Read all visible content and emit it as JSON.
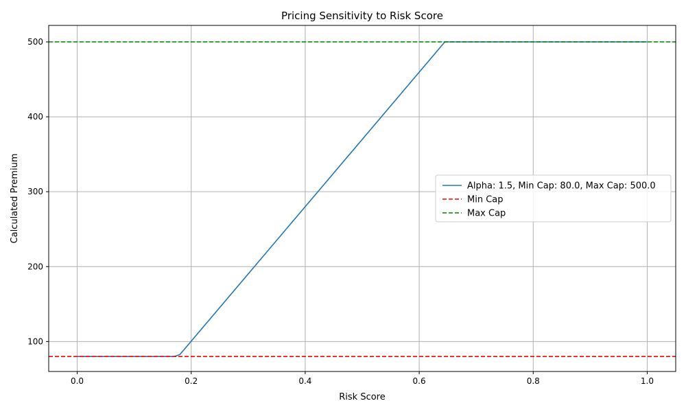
{
  "chart_data": {
    "type": "line",
    "title": "Pricing Sensitivity to Risk Score",
    "xlabel": "Risk Score",
    "ylabel": "Calculated Premium",
    "xlim": [
      -0.05,
      1.05
    ],
    "ylim": [
      60,
      522
    ],
    "xticks": [
      0.0,
      0.2,
      0.4,
      0.6,
      0.8,
      1.0
    ],
    "xtick_labels": [
      "0.0",
      "0.2",
      "0.4",
      "0.6",
      "0.8",
      "1.0"
    ],
    "yticks": [
      100,
      200,
      300,
      400,
      500
    ],
    "ytick_labels": [
      "100",
      "200",
      "300",
      "400",
      "500"
    ],
    "grid": true,
    "legend_position": "center-right",
    "series": [
      {
        "name": "Alpha: 1.5, Min Cap: 80.0, Max Cap: 500.0",
        "color": "#1f77b4",
        "style": "solid",
        "x": [
          0.0,
          0.17,
          0.18,
          0.645,
          1.0
        ],
        "y": [
          80,
          80,
          82.5,
          500,
          500
        ]
      },
      {
        "name": "Min Cap",
        "color": "#ff0000",
        "style": "dashed",
        "hline": 80
      },
      {
        "name": "Max Cap",
        "color": "#008000",
        "style": "dashed",
        "hline": 500
      }
    ]
  }
}
